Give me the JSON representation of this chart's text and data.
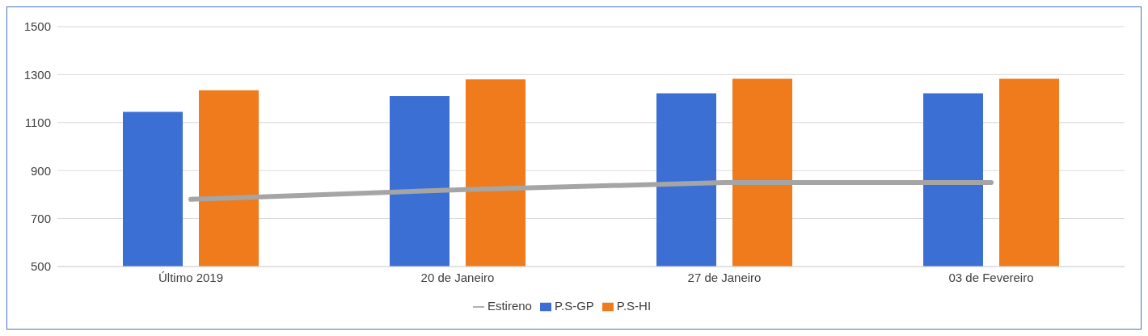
{
  "chart_data": {
    "type": "bar",
    "categories": [
      "Último 2019",
      "20 de Janeiro",
      "27 de Janeiro",
      "03 de Fevereiro"
    ],
    "series": [
      {
        "name": "P.S-GP",
        "color": "#3b6fd4",
        "values": [
          1145,
          1210,
          1222,
          1222
        ]
      },
      {
        "name": "P.S-HI",
        "color": "#ef7b1d",
        "values": [
          1235,
          1280,
          1283,
          1283
        ]
      },
      {
        "name": "Estireno",
        "type": "line",
        "color": "#a5a5a5",
        "values": [
          780,
          820,
          850,
          850
        ]
      }
    ],
    "ylim": [
      500,
      1500
    ],
    "yticks": [
      500,
      700,
      900,
      1100,
      1300,
      1500
    ],
    "grid": "y",
    "legend": "bottom"
  }
}
